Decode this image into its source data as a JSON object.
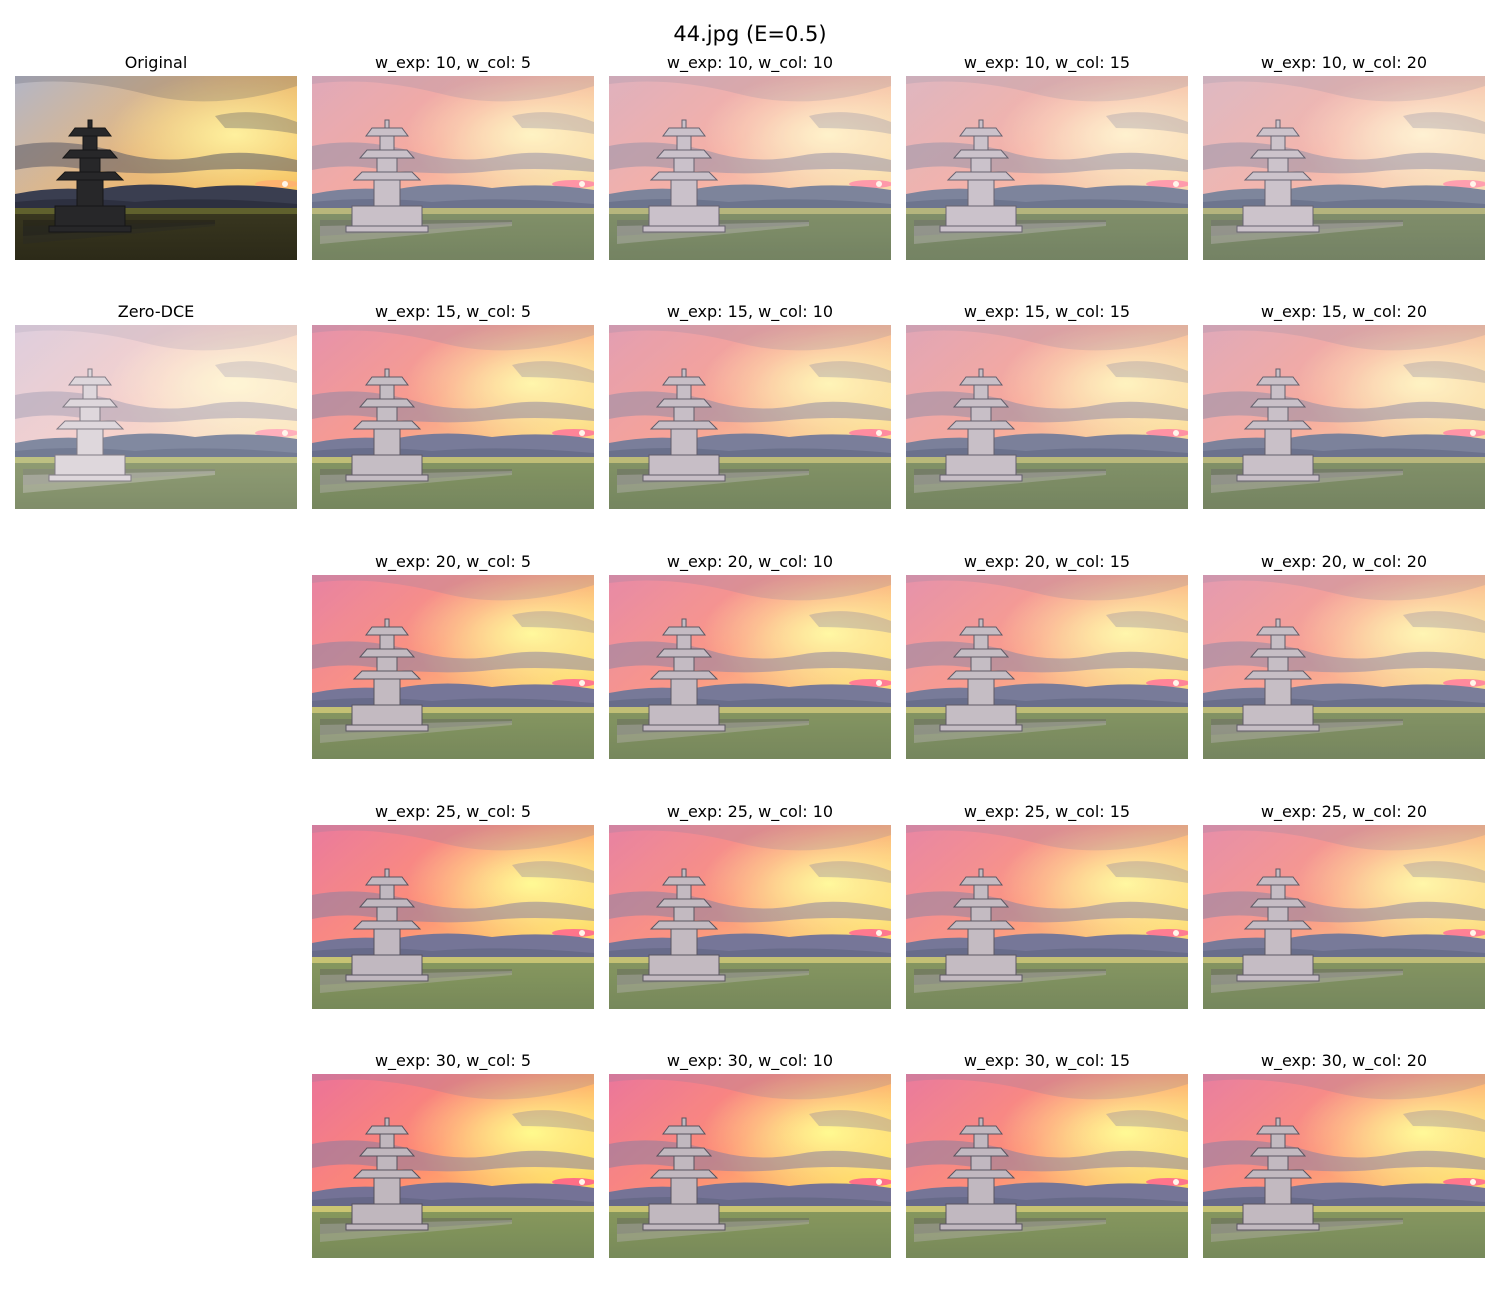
{
  "title": "44.jpg (E=0.5)",
  "scene_icon": "pagoda-sunset-photo",
  "colors": {
    "page_bg": "#ffffff"
  },
  "panels": [
    {
      "row": 0,
      "col": 0,
      "caption": "Original",
      "tone": "dark"
    },
    {
      "row": 0,
      "col": 1,
      "caption": "w_exp: 10, w_col: 5",
      "tone": "enh",
      "level": 0.3
    },
    {
      "row": 0,
      "col": 2,
      "caption": "w_exp: 10, w_col: 10",
      "tone": "enh",
      "level": 0.2
    },
    {
      "row": 0,
      "col": 3,
      "caption": "w_exp: 10, w_col: 15",
      "tone": "enh",
      "level": 0.15
    },
    {
      "row": 0,
      "col": 4,
      "caption": "w_exp: 10, w_col: 20",
      "tone": "enh",
      "level": 0.1
    },
    {
      "row": 1,
      "col": 0,
      "caption": "Zero-DCE",
      "tone": "zero"
    },
    {
      "row": 1,
      "col": 1,
      "caption": "w_exp: 15, w_col: 5",
      "tone": "enh",
      "level": 0.6
    },
    {
      "row": 1,
      "col": 2,
      "caption": "w_exp: 15, w_col: 10",
      "tone": "enh",
      "level": 0.45
    },
    {
      "row": 1,
      "col": 3,
      "caption": "w_exp: 15, w_col: 15",
      "tone": "enh",
      "level": 0.35
    },
    {
      "row": 1,
      "col": 4,
      "caption": "w_exp: 15, w_col: 20",
      "tone": "enh",
      "level": 0.3
    },
    {
      "row": 2,
      "col": 1,
      "caption": "w_exp: 20, w_col: 5",
      "tone": "enh",
      "level": 0.8
    },
    {
      "row": 2,
      "col": 2,
      "caption": "w_exp: 20, w_col: 10",
      "tone": "enh",
      "level": 0.7
    },
    {
      "row": 2,
      "col": 3,
      "caption": "w_exp: 20, w_col: 15",
      "tone": "enh",
      "level": 0.6
    },
    {
      "row": 2,
      "col": 4,
      "caption": "w_exp: 20, w_col: 20",
      "tone": "enh",
      "level": 0.5
    },
    {
      "row": 3,
      "col": 1,
      "caption": "w_exp: 25, w_col: 5",
      "tone": "enh",
      "level": 0.9
    },
    {
      "row": 3,
      "col": 2,
      "caption": "w_exp: 25, w_col: 10",
      "tone": "enh",
      "level": 0.8
    },
    {
      "row": 3,
      "col": 3,
      "caption": "w_exp: 25, w_col: 15",
      "tone": "enh",
      "level": 0.75
    },
    {
      "row": 3,
      "col": 4,
      "caption": "w_exp: 25, w_col: 20",
      "tone": "enh",
      "level": 0.65
    },
    {
      "row": 4,
      "col": 1,
      "caption": "w_exp: 30, w_col: 5",
      "tone": "enh",
      "level": 1.0
    },
    {
      "row": 4,
      "col": 2,
      "caption": "w_exp: 30, w_col: 10",
      "tone": "enh",
      "level": 0.95
    },
    {
      "row": 4,
      "col": 3,
      "caption": "w_exp: 30, w_col: 15",
      "tone": "enh",
      "level": 0.9
    },
    {
      "row": 4,
      "col": 4,
      "caption": "w_exp: 30, w_col: 20",
      "tone": "enh",
      "level": 0.85
    }
  ]
}
